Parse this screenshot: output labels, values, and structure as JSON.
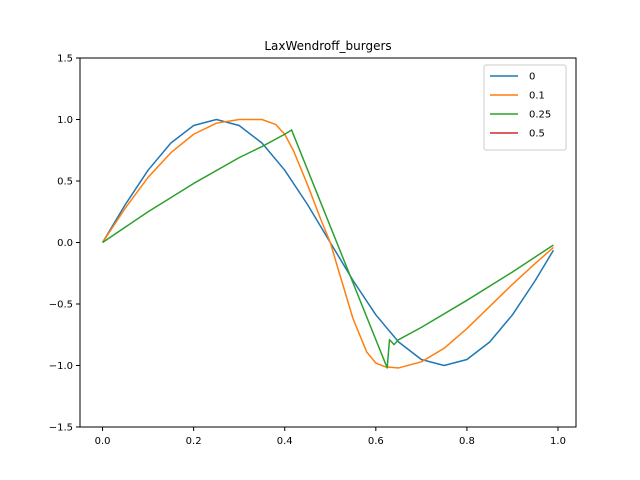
{
  "chart_data": {
    "type": "line",
    "title": "LaxWendroff_burgers",
    "xlabel": "",
    "ylabel": "",
    "xlim": [
      -0.0495,
      1.0395
    ],
    "ylim": [
      -1.5,
      1.5
    ],
    "xticks": [
      0.0,
      0.2,
      0.4,
      0.6,
      0.8,
      1.0
    ],
    "xtick_labels": [
      "0.0",
      "0.2",
      "0.4",
      "0.6",
      "0.8",
      "1.0"
    ],
    "yticks": [
      -1.5,
      -1.0,
      -0.5,
      0.0,
      0.5,
      1.0,
      1.5
    ],
    "ytick_labels": [
      "−1.5",
      "−1.0",
      "−0.5",
      "0.0",
      "0.5",
      "1.0",
      "1.5"
    ],
    "grid": false,
    "legend_position": "top-right",
    "series": [
      {
        "name": "0",
        "color": "#1f77b4",
        "x": [
          0.0,
          0.05,
          0.1,
          0.15,
          0.2,
          0.25,
          0.3,
          0.35,
          0.4,
          0.45,
          0.5,
          0.55,
          0.6,
          0.65,
          0.7,
          0.75,
          0.8,
          0.85,
          0.9,
          0.95,
          0.99
        ],
        "y": [
          0.0,
          0.309,
          0.588,
          0.809,
          0.951,
          1.0,
          0.951,
          0.809,
          0.588,
          0.309,
          0.0,
          -0.309,
          -0.588,
          -0.809,
          -0.951,
          -1.0,
          -0.951,
          -0.809,
          -0.588,
          -0.309,
          -0.063
        ]
      },
      {
        "name": "0.1",
        "color": "#ff7f0e",
        "x": [
          0.0,
          0.05,
          0.1,
          0.15,
          0.2,
          0.25,
          0.3,
          0.35,
          0.38,
          0.4,
          0.42,
          0.45,
          0.48,
          0.5,
          0.52,
          0.55,
          0.58,
          0.6,
          0.62,
          0.65,
          0.7,
          0.75,
          0.8,
          0.85,
          0.9,
          0.95,
          0.99
        ],
        "y": [
          0.0,
          0.28,
          0.53,
          0.73,
          0.88,
          0.97,
          1.0,
          1.0,
          0.96,
          0.88,
          0.74,
          0.47,
          0.18,
          0.0,
          -0.25,
          -0.62,
          -0.89,
          -0.98,
          -1.01,
          -1.02,
          -0.97,
          -0.86,
          -0.7,
          -0.52,
          -0.34,
          -0.17,
          -0.04
        ]
      },
      {
        "name": "0.25",
        "color": "#2ca02c",
        "x": [
          0.0,
          0.1,
          0.2,
          0.3,
          0.35,
          0.4,
          0.415,
          0.625,
          0.63,
          0.64,
          0.65,
          0.7,
          0.8,
          0.9,
          0.99
        ],
        "y": [
          0.0,
          0.25,
          0.48,
          0.69,
          0.78,
          0.88,
          0.915,
          -1.02,
          -0.79,
          -0.83,
          -0.79,
          -0.69,
          -0.47,
          -0.24,
          -0.02
        ]
      },
      {
        "name": "0.5",
        "color": "#d62728",
        "x": [],
        "y": []
      }
    ]
  }
}
